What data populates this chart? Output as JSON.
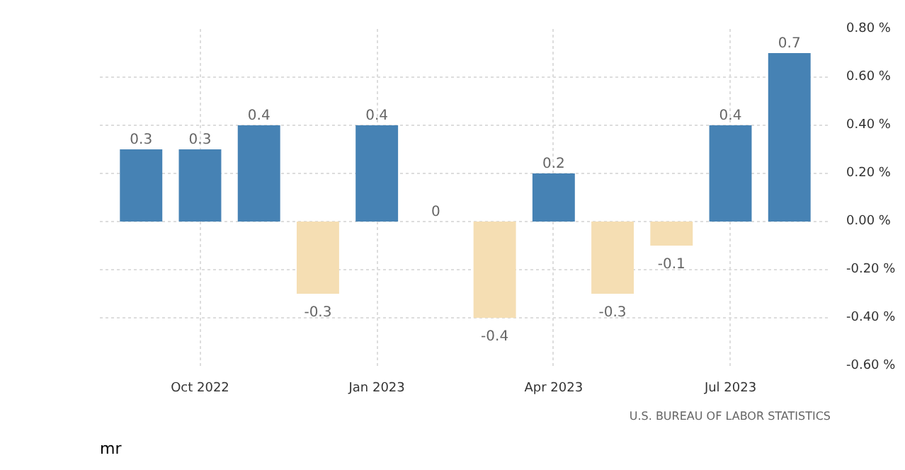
{
  "chart_data": {
    "type": "bar",
    "categories": [
      null,
      "Oct 2022",
      null,
      null,
      "Jan 2023",
      null,
      null,
      "Apr 2023",
      null,
      null,
      "Jul 2023",
      null
    ],
    "values": [
      0.3,
      0.3,
      0.4,
      -0.3,
      0.4,
      0,
      -0.4,
      0.2,
      -0.3,
      -0.1,
      0.4,
      0.7
    ],
    "colors": [
      "#4682b4",
      "#4682b4",
      "#4682b4",
      "#f5deb3",
      "#4682b4",
      "#4682b4",
      "#f5deb3",
      "#4682b4",
      "#f5deb3",
      "#f5deb3",
      "#4682b4",
      "#4682b4"
    ],
    "ylim": [
      -0.6,
      0.8
    ],
    "yticks": [
      {
        "value": 0.8,
        "label": "0.80 %"
      },
      {
        "value": 0.6,
        "label": "0.60 %"
      },
      {
        "value": 0.4,
        "label": "0.40 %"
      },
      {
        "value": 0.2,
        "label": "0.20 %"
      },
      {
        "value": 0,
        "label": "0.00 %"
      },
      {
        "value": -0.2,
        "label": "-0.20 %"
      },
      {
        "value": -0.4,
        "label": "-0.40 %"
      },
      {
        "value": -0.6,
        "label": "-0.60 %"
      }
    ],
    "data_labels": true,
    "grid": true,
    "annotations": [
      "U.S. BUREAU OF LABOR STATISTICS",
      "mr"
    ]
  }
}
